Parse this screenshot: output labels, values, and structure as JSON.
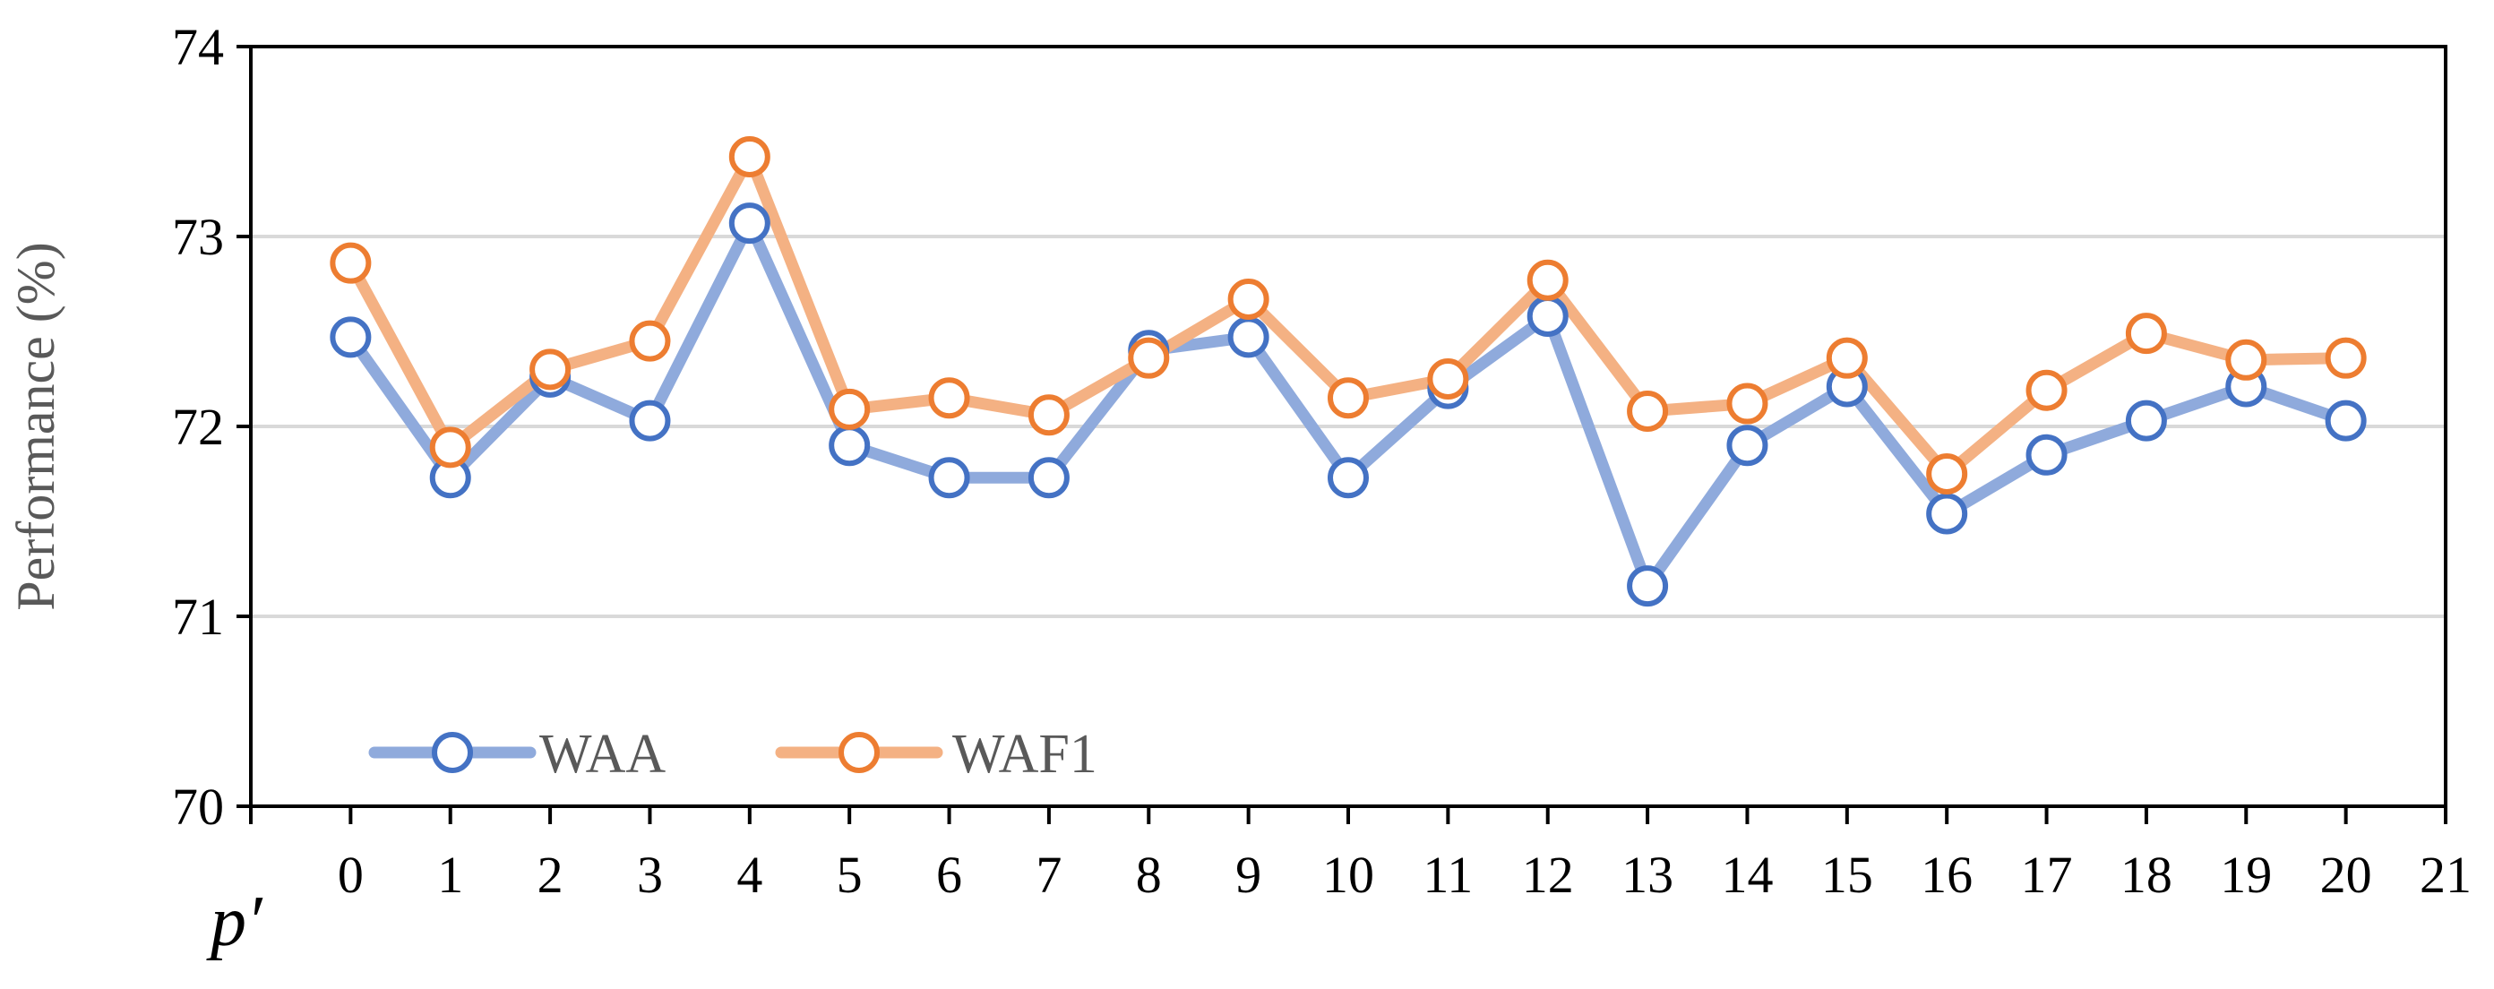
{
  "chart_data": {
    "type": "line",
    "x": [
      0,
      1,
      2,
      3,
      4,
      5,
      6,
      7,
      8,
      9,
      10,
      11,
      12,
      13,
      14,
      15,
      16,
      17,
      18,
      19,
      20
    ],
    "xticks": [
      "0",
      "1",
      "2",
      "3",
      "4",
      "5",
      "6",
      "7",
      "8",
      "9",
      "10",
      "11",
      "12",
      "13",
      "14",
      "15",
      "16",
      "17",
      "18",
      "19",
      "20",
      "21"
    ],
    "xlim": [
      -1,
      21
    ],
    "ylim": [
      70,
      74
    ],
    "yticks": [
      "70",
      "71",
      "72",
      "73",
      "74"
    ],
    "xlabel": "p′",
    "ylabel": "Performance (%)",
    "grid": "horizontal",
    "legend_position": "bottom-left",
    "series": [
      {
        "name": "WAA",
        "line_color": "#8faadc",
        "marker_color": "#4472c4",
        "values": [
          72.47,
          71.73,
          72.26,
          72.03,
          73.07,
          71.9,
          71.73,
          71.73,
          72.4,
          72.47,
          71.73,
          72.2,
          72.58,
          71.16,
          71.9,
          72.21,
          71.54,
          71.85,
          72.03,
          72.21,
          72.03
        ]
      },
      {
        "name": "WAF1",
        "line_color": "#f4b183",
        "marker_color": "#ed7d31",
        "values": [
          72.86,
          71.89,
          72.3,
          72.45,
          73.42,
          72.09,
          72.15,
          72.06,
          72.36,
          72.67,
          72.15,
          72.25,
          72.77,
          72.08,
          72.12,
          72.36,
          71.75,
          72.19,
          72.49,
          72.35,
          72.36
        ]
      }
    ]
  }
}
